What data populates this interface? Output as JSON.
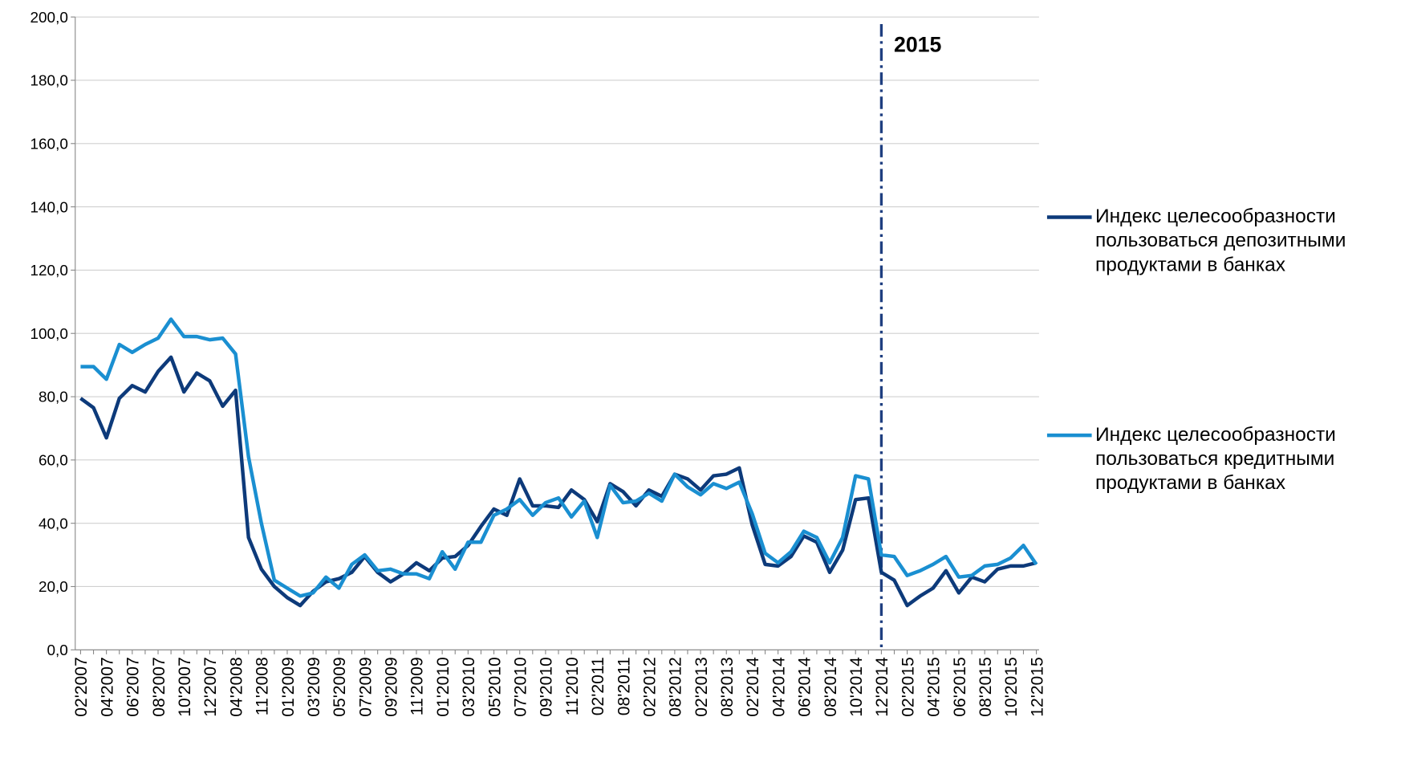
{
  "chart_data": {
    "type": "line",
    "categories": [
      "02'2007",
      null,
      "04'2007",
      null,
      "06'2007",
      null,
      "08'2007",
      null,
      "10'2007",
      null,
      "12'2007",
      null,
      "04'2008",
      null,
      "11'2008",
      null,
      "01'2009",
      null,
      "03'2009",
      null,
      "05'2009",
      null,
      "07'2009",
      null,
      "09'2009",
      null,
      "11'2009",
      null,
      "01'2010",
      null,
      "03'2010",
      null,
      "05'2010",
      null,
      "07'2010",
      null,
      "09'2010",
      null,
      "11'2010",
      null,
      "02'2011",
      null,
      "08'2011",
      null,
      "02'2012",
      null,
      "08'2012",
      null,
      "02'2013",
      null,
      "08'2013",
      null,
      "02'2014",
      null,
      "04'2014",
      null,
      "06'2014",
      null,
      "08'2014",
      null,
      "10'2014",
      null,
      "12'2014",
      null,
      "02'2015",
      null,
      "04'2015",
      null,
      "06'2015",
      null,
      "08'2015",
      null,
      "10'2015",
      null,
      "12'2015"
    ],
    "series": [
      {
        "name": "Индекс целесообразности пользоваться депозитными продуктами в банках",
        "color": "#0d3a7a",
        "values": [
          79.5,
          76.5,
          67,
          79.5,
          83.5,
          81.5,
          88,
          92.5,
          81.5,
          87.5,
          85,
          77,
          82,
          35.5,
          25.5,
          20,
          16.5,
          14,
          18.5,
          21.5,
          22.5,
          24.5,
          29.5,
          24.5,
          21.5,
          24,
          27.5,
          25,
          29,
          29.5,
          33,
          39,
          44.5,
          42.5,
          54,
          45.5,
          45.5,
          45,
          50.5,
          47.5,
          40.5,
          52.5,
          50,
          45.5,
          50.5,
          48.5,
          55.5,
          54,
          50.5,
          55,
          55.5,
          57.5,
          39.5,
          27,
          26.5,
          29.5,
          36,
          34,
          24.5,
          31.5,
          47.5,
          48,
          24.5,
          22,
          14,
          17,
          19.5,
          25,
          18,
          23,
          21.5,
          25.5,
          26.5,
          26.5,
          27.5
        ]
      },
      {
        "name": "Индекс целесообразности пользоваться кредитными продуктами в банках",
        "color": "#1a8fd1",
        "values": [
          89.5,
          89.5,
          85.5,
          96.5,
          94,
          96.5,
          98.5,
          104.5,
          99,
          99,
          98,
          98.5,
          93.5,
          61,
          40,
          22,
          19.5,
          17,
          18,
          23,
          19.5,
          27,
          30,
          25,
          25.5,
          24,
          24,
          22.5,
          31,
          25.5,
          34,
          34,
          42.5,
          44.5,
          47.5,
          42.5,
          46.5,
          48,
          42,
          47,
          35.5,
          52,
          46.5,
          47,
          49.5,
          47,
          55.5,
          51.5,
          49,
          52.5,
          51,
          53,
          43,
          30.5,
          27.5,
          31,
          37.5,
          35.5,
          27.5,
          35.5,
          55,
          54,
          30,
          29.5,
          23.5,
          25,
          27,
          29.5,
          23,
          23.5,
          26.5,
          27,
          29,
          33,
          27
        ]
      }
    ],
    "ylim": [
      0,
      200
    ],
    "yticks": [
      {
        "value": 0,
        "label": "0,0"
      },
      {
        "value": 20,
        "label": "20,0"
      },
      {
        "value": 40,
        "label": "40,0"
      },
      {
        "value": 60,
        "label": "60,0"
      },
      {
        "value": 80,
        "label": "80,0"
      },
      {
        "value": 100,
        "label": "100,0"
      },
      {
        "value": 120,
        "label": "120,0"
      },
      {
        "value": 140,
        "label": "140,0"
      },
      {
        "value": 160,
        "label": "160,0"
      },
      {
        "value": 180,
        "label": "180,0"
      },
      {
        "value": 200,
        "label": "200,0"
      }
    ],
    "grid": true,
    "legend": "right",
    "annotations": [
      {
        "text": "2015",
        "category": "12'2014",
        "color": "#1f3f80"
      }
    ]
  }
}
